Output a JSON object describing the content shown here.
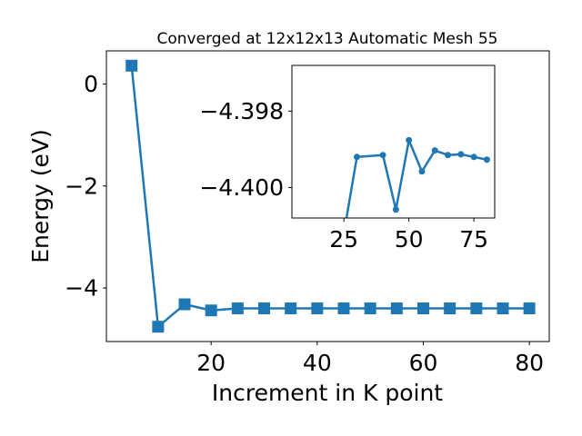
{
  "chart_data": [
    {
      "type": "line",
      "title": "Converged at 12x12x13 Automatic Mesh 55",
      "xlabel": "Increment in K point",
      "ylabel": "Energy (eV)",
      "xlim": [
        0.25,
        83.75
      ],
      "ylim": [
        -5.05,
        0.65
      ],
      "xticks": [
        20,
        40,
        60,
        80
      ],
      "xtick_labels": [
        "20",
        "40",
        "60",
        "80"
      ],
      "yticks": [
        0,
        -2,
        -4
      ],
      "ytick_labels": [
        "0",
        "−2",
        "−4"
      ],
      "grid": false,
      "legend": false,
      "marker": "square",
      "color": "#1f77b4",
      "series": [
        {
          "x": [
            5,
            10,
            15,
            20,
            25,
            30,
            35,
            40,
            45,
            50,
            55,
            60,
            65,
            70,
            75,
            80
          ],
          "y": [
            0.36,
            -4.76,
            -4.32,
            -4.44,
            -4.4,
            -4.4,
            -4.4,
            -4.4,
            -4.4,
            -4.4,
            -4.4,
            -4.4,
            -4.4,
            -4.4,
            -4.4,
            -4.4
          ]
        }
      ]
    },
    {
      "type": "line",
      "title": "",
      "xlabel": "",
      "ylabel": "",
      "xlim": [
        5,
        83
      ],
      "ylim": [
        -4.4008,
        -4.3968
      ],
      "xticks": [
        25,
        50,
        75
      ],
      "xtick_labels": [
        "25",
        "50",
        "75"
      ],
      "yticks": [
        -4.4,
        -4.398
      ],
      "ytick_labels": [
        "−4.400",
        "−4.398"
      ],
      "grid": false,
      "legend": false,
      "marker": "circle",
      "color": "#1f77b4",
      "series": [
        {
          "x": [
            25,
            30,
            40,
            45,
            50,
            55,
            60,
            65,
            70,
            75,
            80
          ],
          "y": [
            -4.4012,
            -4.3992,
            -4.39915,
            -4.40058,
            -4.39876,
            -4.39958,
            -4.39903,
            -4.39915,
            -4.39913,
            -4.3992,
            -4.39927
          ]
        }
      ]
    }
  ]
}
